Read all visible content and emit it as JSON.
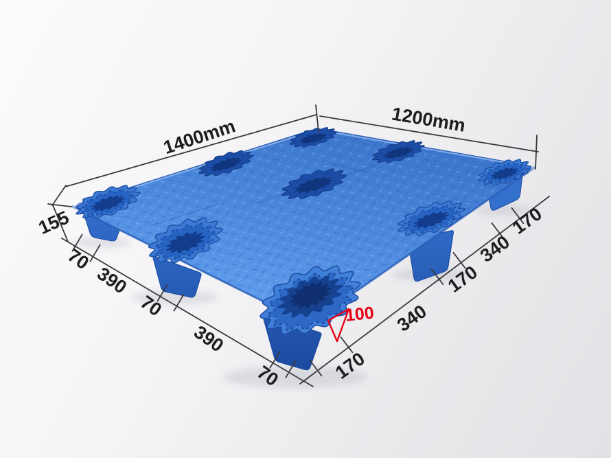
{
  "annotations": {
    "length_label": "1400mm",
    "width_label": "1200mm",
    "height_label": "155",
    "foot_height_label": "100",
    "left_chain_labels": [
      "70",
      "390",
      "70",
      "390",
      "70"
    ],
    "right_chain_labels": [
      "170",
      "340",
      "170",
      "340",
      "170"
    ]
  },
  "colors": {
    "pallet_blue": "#4585da",
    "hole_navy": "#16418f",
    "dimension_line": "#3a3a3c",
    "label_text": "#1d1d1f",
    "accent_red": "#e60012",
    "background": "#ebebed"
  }
}
